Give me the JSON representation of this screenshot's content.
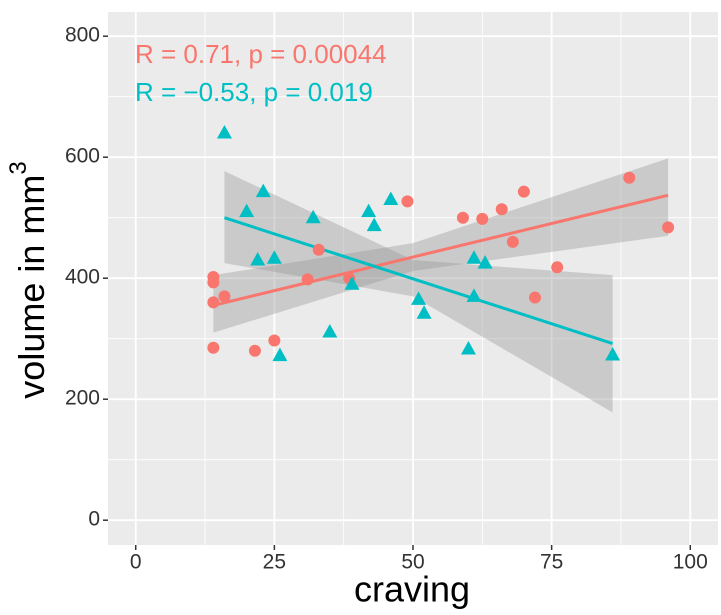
{
  "chart_data": {
    "type": "scatter",
    "annotations": [
      "R = 0.71, p = 0.00044",
      "R = −0.53, p = 0.019"
    ],
    "x_label": "craving",
    "y_label": "volume in mm",
    "y_label_superscript": "3",
    "xlim": [
      -5,
      105
    ],
    "ylim": [
      -41,
      840
    ],
    "xticks": [
      0,
      25,
      50,
      75,
      100
    ],
    "yticks": [
      0,
      200,
      400,
      600,
      800
    ],
    "grid": true,
    "series": [
      {
        "color": "#F8766D",
        "marker": "circle",
        "x": [
          14,
          14,
          14,
          14,
          16,
          21.5,
          25,
          31,
          33,
          38.5,
          49,
          59,
          62.5,
          66,
          68,
          70,
          72,
          76,
          89,
          96
        ],
        "values": [
          285,
          360,
          393,
          402,
          370,
          280,
          297,
          398,
          447,
          400,
          527,
          500,
          498,
          514,
          460,
          543,
          368,
          418,
          566,
          484
        ],
        "fit": {
          "x": [
            14,
            50,
            96
          ],
          "y": [
            355,
            435,
            537
          ],
          "lower": [
            310,
            412,
            470
          ],
          "upper": [
            405,
            458,
            598
          ]
        }
      },
      {
        "color": "#00BFC4",
        "marker": "triangle",
        "x": [
          16,
          20,
          22,
          23,
          25,
          26,
          32,
          35,
          39,
          42,
          43,
          46,
          51,
          52,
          60,
          61,
          61,
          63,
          86
        ],
        "values": [
          640,
          510,
          430,
          543,
          433,
          272,
          500,
          311,
          390,
          510,
          487,
          530,
          365,
          342,
          283,
          433,
          370,
          425,
          273
        ],
        "fit": {
          "x": [
            16,
            50,
            86
          ],
          "y": [
            500,
            399,
            292
          ],
          "lower": [
            425,
            370,
            178
          ],
          "upper": [
            577,
            430,
            405
          ]
        }
      }
    ]
  }
}
